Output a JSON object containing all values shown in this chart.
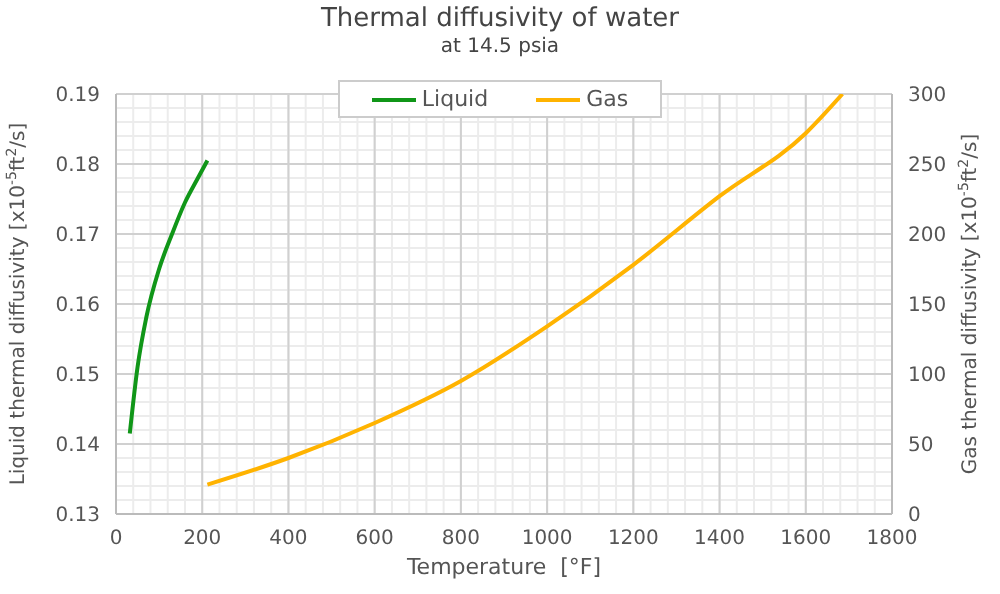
{
  "chart_data": {
    "type": "line",
    "title": "Thermal diffusivity of water",
    "subtitle": "at 14.5 psia",
    "xlabel": "Temperature  [°F]",
    "ylabel": "Liquid thermal diffusivity  [x10$^{-5}$ft$^{2}$/s]",
    "y2label": "Gas thermal diffusivity  [x10$^{-5}$ft$^{2}$/s]",
    "xlim": [
      0,
      1800
    ],
    "xticks": [
      0,
      200,
      400,
      600,
      800,
      1000,
      1200,
      1400,
      1600,
      1800
    ],
    "ylim": [
      0.13,
      0.19
    ],
    "yticks": [
      0.13,
      0.14,
      0.15,
      0.16,
      0.17,
      0.18,
      0.19
    ],
    "y2lim": [
      0,
      300
    ],
    "y2ticks": [
      0,
      50,
      100,
      150,
      200,
      250,
      300
    ],
    "grid": true,
    "legend": "top",
    "marker": "none",
    "line_style": "solid",
    "series": [
      {
        "name": "Liquid",
        "color": "#109618",
        "x": [
          32,
          50,
          70,
          100,
          130,
          160,
          190,
          212
        ],
        "values": [
          0.1415,
          0.151,
          0.158,
          0.165,
          0.17,
          0.1745,
          0.178,
          0.1805
        ]
      },
      {
        "name": "Gas",
        "color": "#ffb300",
        "axis": "y2",
        "x": [
          212,
          400,
          600,
          800,
          1000,
          1200,
          1400,
          1600,
          1685
        ],
        "values": [
          21,
          40,
          65,
          95,
          134,
          178,
          227,
          272,
          300
        ]
      }
    ]
  }
}
